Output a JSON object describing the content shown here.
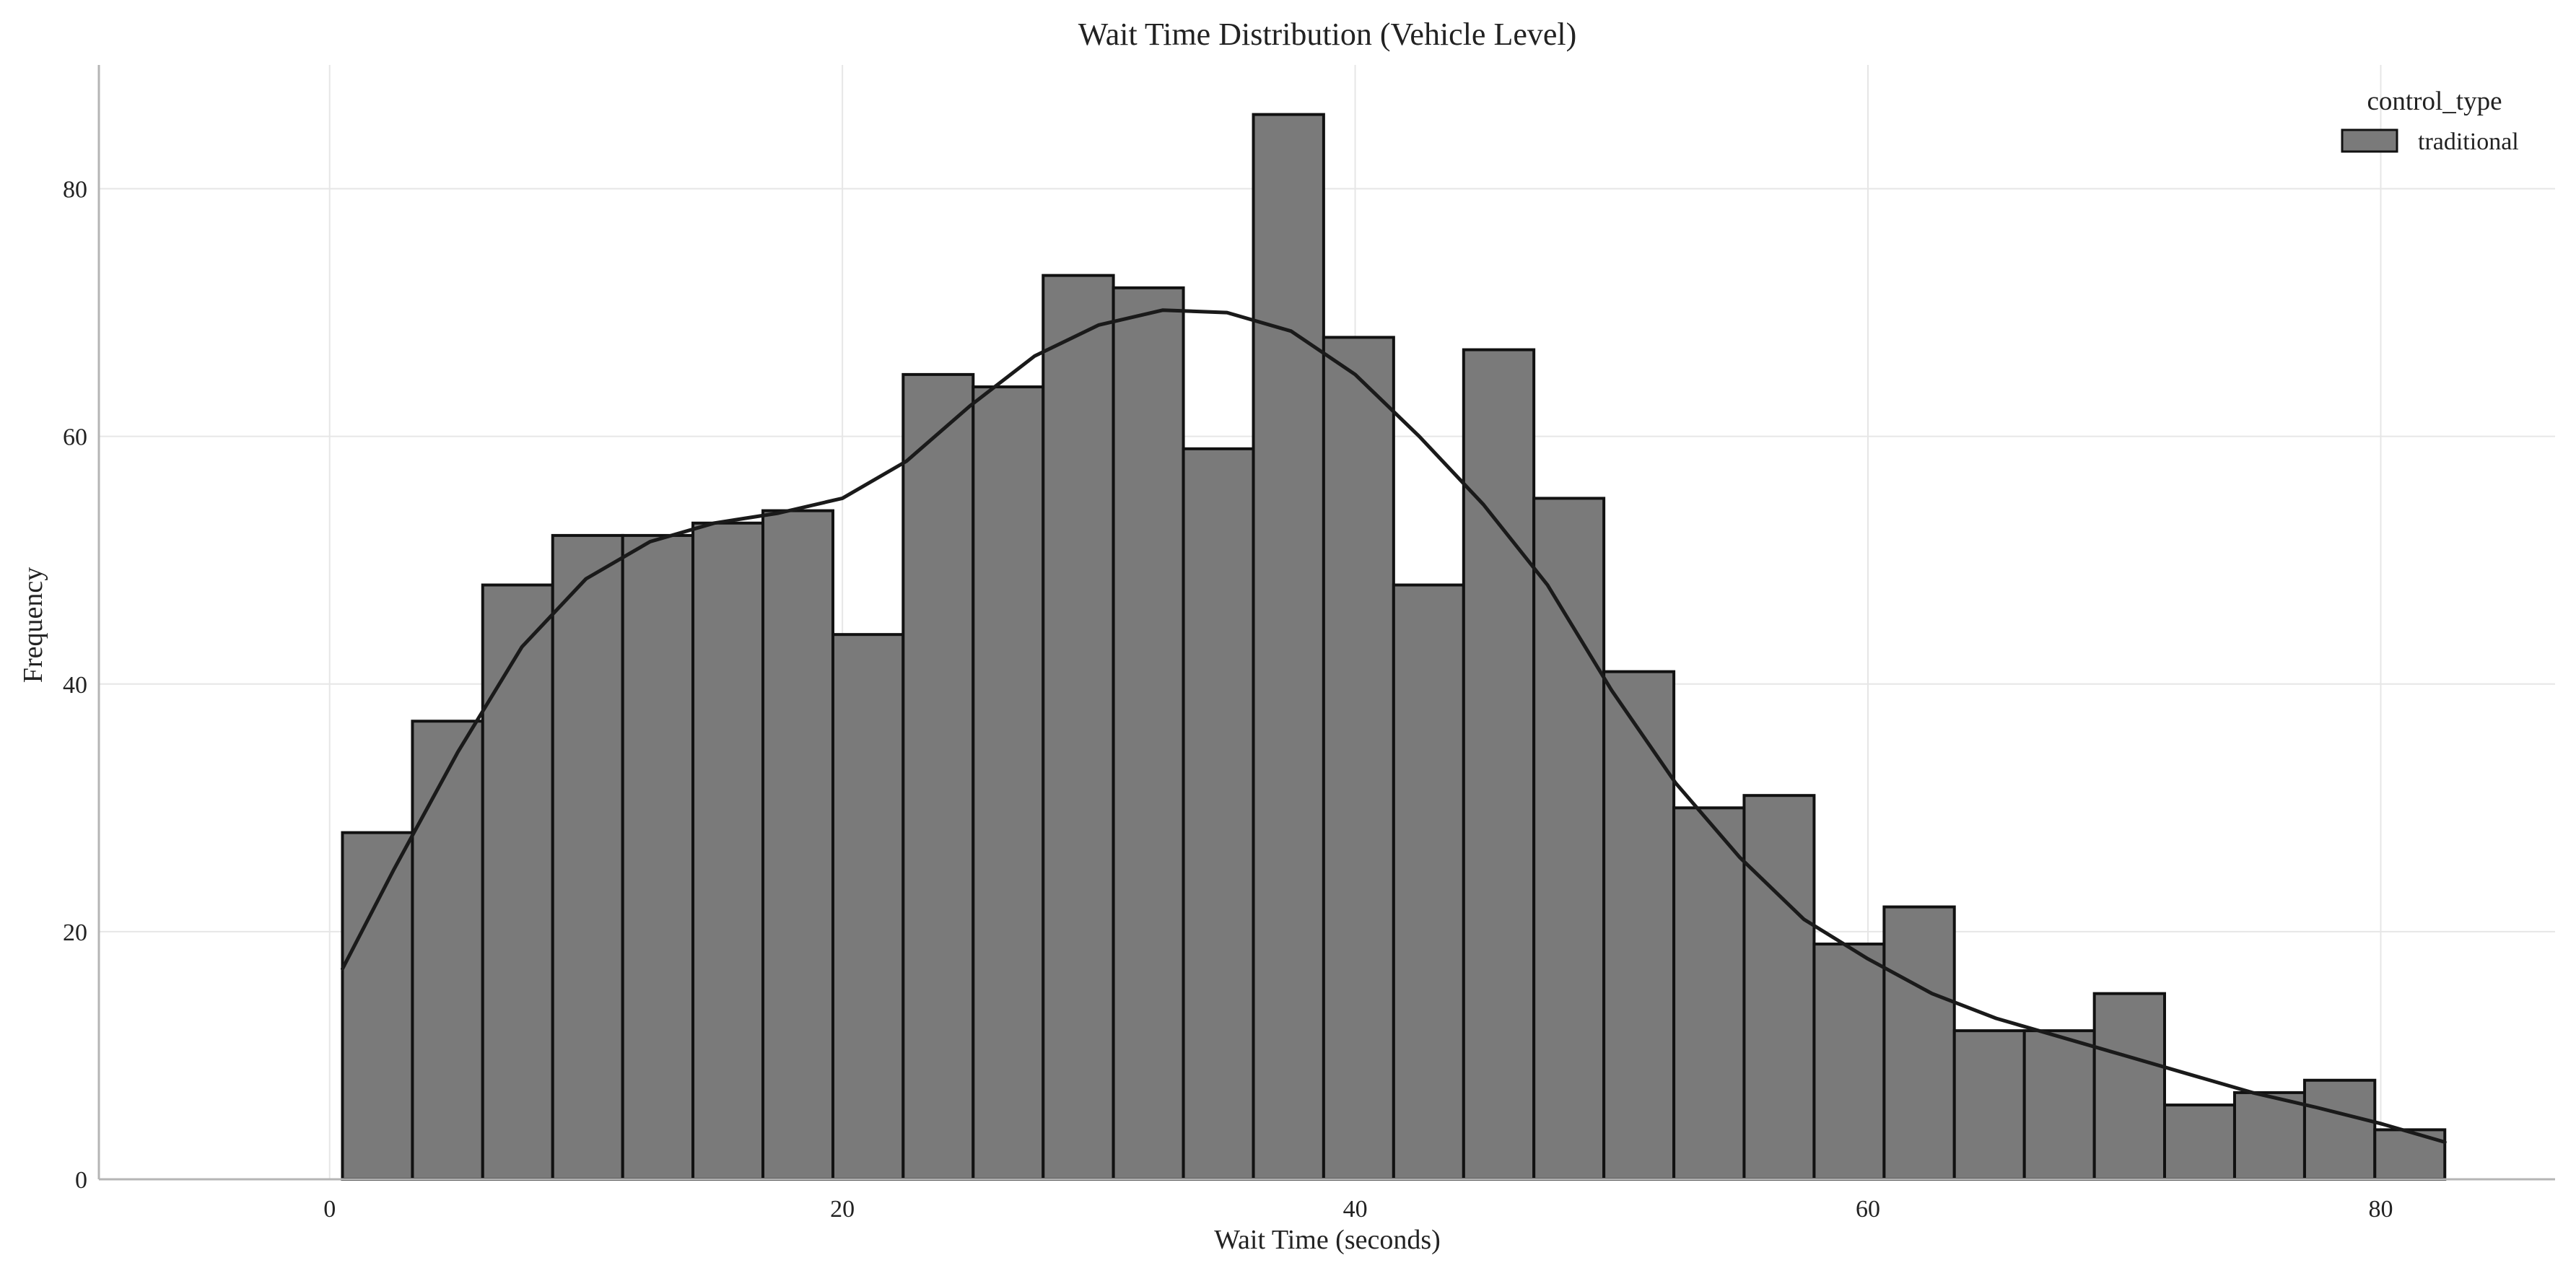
{
  "chart_data": {
    "type": "bar",
    "title": "Wait Time Distribution (Vehicle Level)",
    "xlabel": "Wait Time (seconds)",
    "ylabel": "Frequency",
    "xlim": [
      -9.0,
      86.8
    ],
    "ylim": [
      0,
      90
    ],
    "x_ticks": [
      0,
      20,
      40,
      60,
      80
    ],
    "y_ticks": [
      0,
      20,
      40,
      60,
      80
    ],
    "grid": true,
    "legend": {
      "title": "control_type",
      "placement": "top-right",
      "entries": [
        "traditional"
      ]
    },
    "bin_edges": [
      0.5,
      3.23,
      5.97,
      8.7,
      11.43,
      14.17,
      16.9,
      19.63,
      22.37,
      25.1,
      27.83,
      30.57,
      33.3,
      36.03,
      38.77,
      41.5,
      44.23,
      46.97,
      49.7,
      52.43,
      55.17,
      57.9,
      60.63,
      63.37,
      66.1,
      68.83,
      71.57,
      74.3,
      77.03,
      79.77,
      82.5
    ],
    "series": [
      {
        "name": "traditional",
        "color": "#7a7a7a",
        "edge_color": "#111111",
        "values": [
          28,
          37,
          48,
          52,
          52,
          53,
          54,
          44,
          65,
          64,
          73,
          72,
          59,
          86,
          68,
          48,
          67,
          55,
          41,
          30,
          31,
          19,
          22,
          12,
          12,
          15,
          6,
          7,
          8,
          4
        ]
      }
    ],
    "kde": {
      "color": "#1a1a1a",
      "x": [
        0.5,
        2.5,
        5,
        7.5,
        10,
        12.5,
        15,
        17.5,
        20,
        22.5,
        25,
        27.5,
        30,
        32.5,
        35,
        37.5,
        40,
        42.5,
        45,
        47.5,
        50,
        52.5,
        55,
        57.5,
        60,
        62.5,
        65,
        67.5,
        70,
        72.5,
        75,
        77.5,
        80,
        82.5
      ],
      "y": [
        17,
        25,
        34.5,
        43,
        48.5,
        51.5,
        53,
        53.8,
        55,
        58,
        62.5,
        66.5,
        69,
        70.2,
        70,
        68.5,
        65,
        60,
        54.5,
        48,
        39.5,
        32,
        26,
        21,
        17.8,
        15,
        13,
        11.5,
        10,
        8.5,
        7,
        5.8,
        4.5,
        3
      ]
    }
  }
}
